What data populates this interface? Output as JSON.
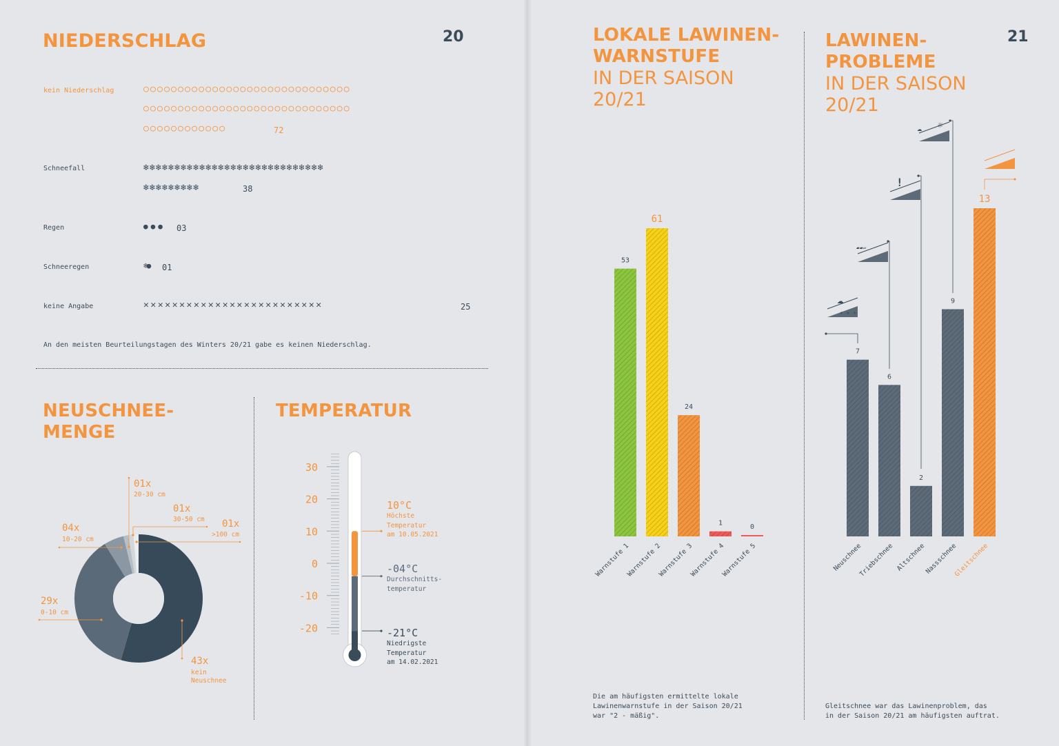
{
  "pages": {
    "left_number": "20",
    "right_number": "21"
  },
  "precip": {
    "title": "NIEDERSCHLAG",
    "rows": [
      {
        "label": "kein Niederschlag",
        "icon": "sun-icon",
        "line1": "○○○○○○○○○○○○○○○○○○○○○○○○○○○○○○",
        "line2": "○○○○○○○○○○○○○○○○○○○○○○○○○○○○○○",
        "line3": "○○○○○○○○○○○○",
        "count": "72"
      },
      {
        "label": "Schneefall",
        "icon": "snowflake-icon",
        "line1": "❄❄❄❄❄❄❄❄❄❄❄❄❄❄❄❄❄❄❄❄❄❄❄❄❄❄❄❄❄",
        "line2": "❄❄❄❄❄❄❄❄❄",
        "count": "38"
      },
      {
        "label": "Regen",
        "icon": "raindrop-icon",
        "line1": "●●●",
        "count": "03"
      },
      {
        "label": "Schneeregen",
        "icon": "sleet-icon",
        "line1": "❄●",
        "count": "01"
      },
      {
        "label": "keine Angabe",
        "icon": "cross-icon",
        "line1": "✕✕✕✕✕✕✕✕✕✕✕✕✕✕✕✕✕✕✕✕✕✕✕✕✕",
        "count": "25"
      }
    ],
    "note": "An den meisten Beurteilungstagen des Winters 20/21 gabe es keinen Niederschlag."
  },
  "neuschnee": {
    "title_line1": "NEUSCHNEE-",
    "title_line2": "MENGE"
  },
  "temperatur": {
    "title": "TEMPERATUR",
    "max_value": "10°C",
    "max_label": "Höchste\nTemperatur\nam 10.05.2021",
    "avg_value": "-04°C",
    "avg_label": "Durchschnitts-\ntemperatur",
    "min_value": "-21°C",
    "min_label": "Niedrigste\nTemperatur\nam 14.02.2021"
  },
  "lawinenwarnstufe": {
    "title_line1": "LOKALE LAWINEN-",
    "title_line2": "WARNSTUFE",
    "sub_line1": "IN DER SAISON",
    "sub_line2": "20/21",
    "note": "Die am häufigsten ermittelte lokale\nLawinenwarnstufe in der Saison 20/21\nwar \"2 - mäßig\"."
  },
  "lawinenprobleme": {
    "title_line1": "LAWINEN-",
    "title_line2": "PROBLEME",
    "sub_line1": "IN DER SAISON",
    "sub_line2": "20/21",
    "note": "Gleitschnee war das Lawinenproblem, das\nin der Saison 20/21 am häufigsten auftrat."
  },
  "colors": {
    "orange": "#f3943f",
    "dark": "#3a4b59",
    "slate": "#5c6b79",
    "green": "#8cc63f",
    "yellow": "#f7d117",
    "red": "#ee5a5a",
    "background": "#e5e6ea"
  },
  "chart_data": [
    {
      "type": "pie",
      "categories": [
        "kein Neuschnee",
        "0-10 cm",
        "10-20 cm",
        "20-30 cm",
        "30-50 cm",
        ">100 cm"
      ],
      "values": [
        43,
        29,
        4,
        1,
        1,
        1
      ],
      "labels": [
        "43x",
        "29x",
        "04x",
        "01x",
        "01x",
        "01x"
      ],
      "sublabels": [
        "kein\nNeuschnee",
        "0-10 cm",
        "10-20 cm",
        "20-30 cm",
        "30-50 cm",
        ">100 cm"
      ]
    },
    {
      "type": "bar",
      "categories": [
        "Warnstufe 1",
        "Warnstufe 2",
        "Warnstufe 3",
        "Warnstufe 4",
        "Warnstufe 5"
      ],
      "values": [
        53,
        61,
        24,
        1,
        0
      ],
      "value_labels": [
        "53",
        "61",
        "24",
        "1",
        "0"
      ],
      "colors": [
        "#8cc63f",
        "#f7d117",
        "#f3943f",
        "#ee5a5a",
        "#ee5a5a"
      ]
    },
    {
      "type": "bar",
      "categories": [
        "Neuschnee",
        "Triebschnee",
        "Altschnee",
        "Nassschnee",
        "Gleitschnee"
      ],
      "values": [
        7,
        6,
        2,
        9,
        13
      ],
      "value_labels": [
        "7",
        "6",
        "2",
        "9",
        "13"
      ],
      "highlight": "Gleitschnee"
    },
    {
      "type": "bar",
      "title": "TEMPERATUR",
      "ticks": [
        "30",
        "20",
        "10",
        "0",
        "-10",
        "-20"
      ],
      "values": [
        10,
        -4,
        -21
      ],
      "ylim": [
        -20,
        30
      ]
    }
  ]
}
